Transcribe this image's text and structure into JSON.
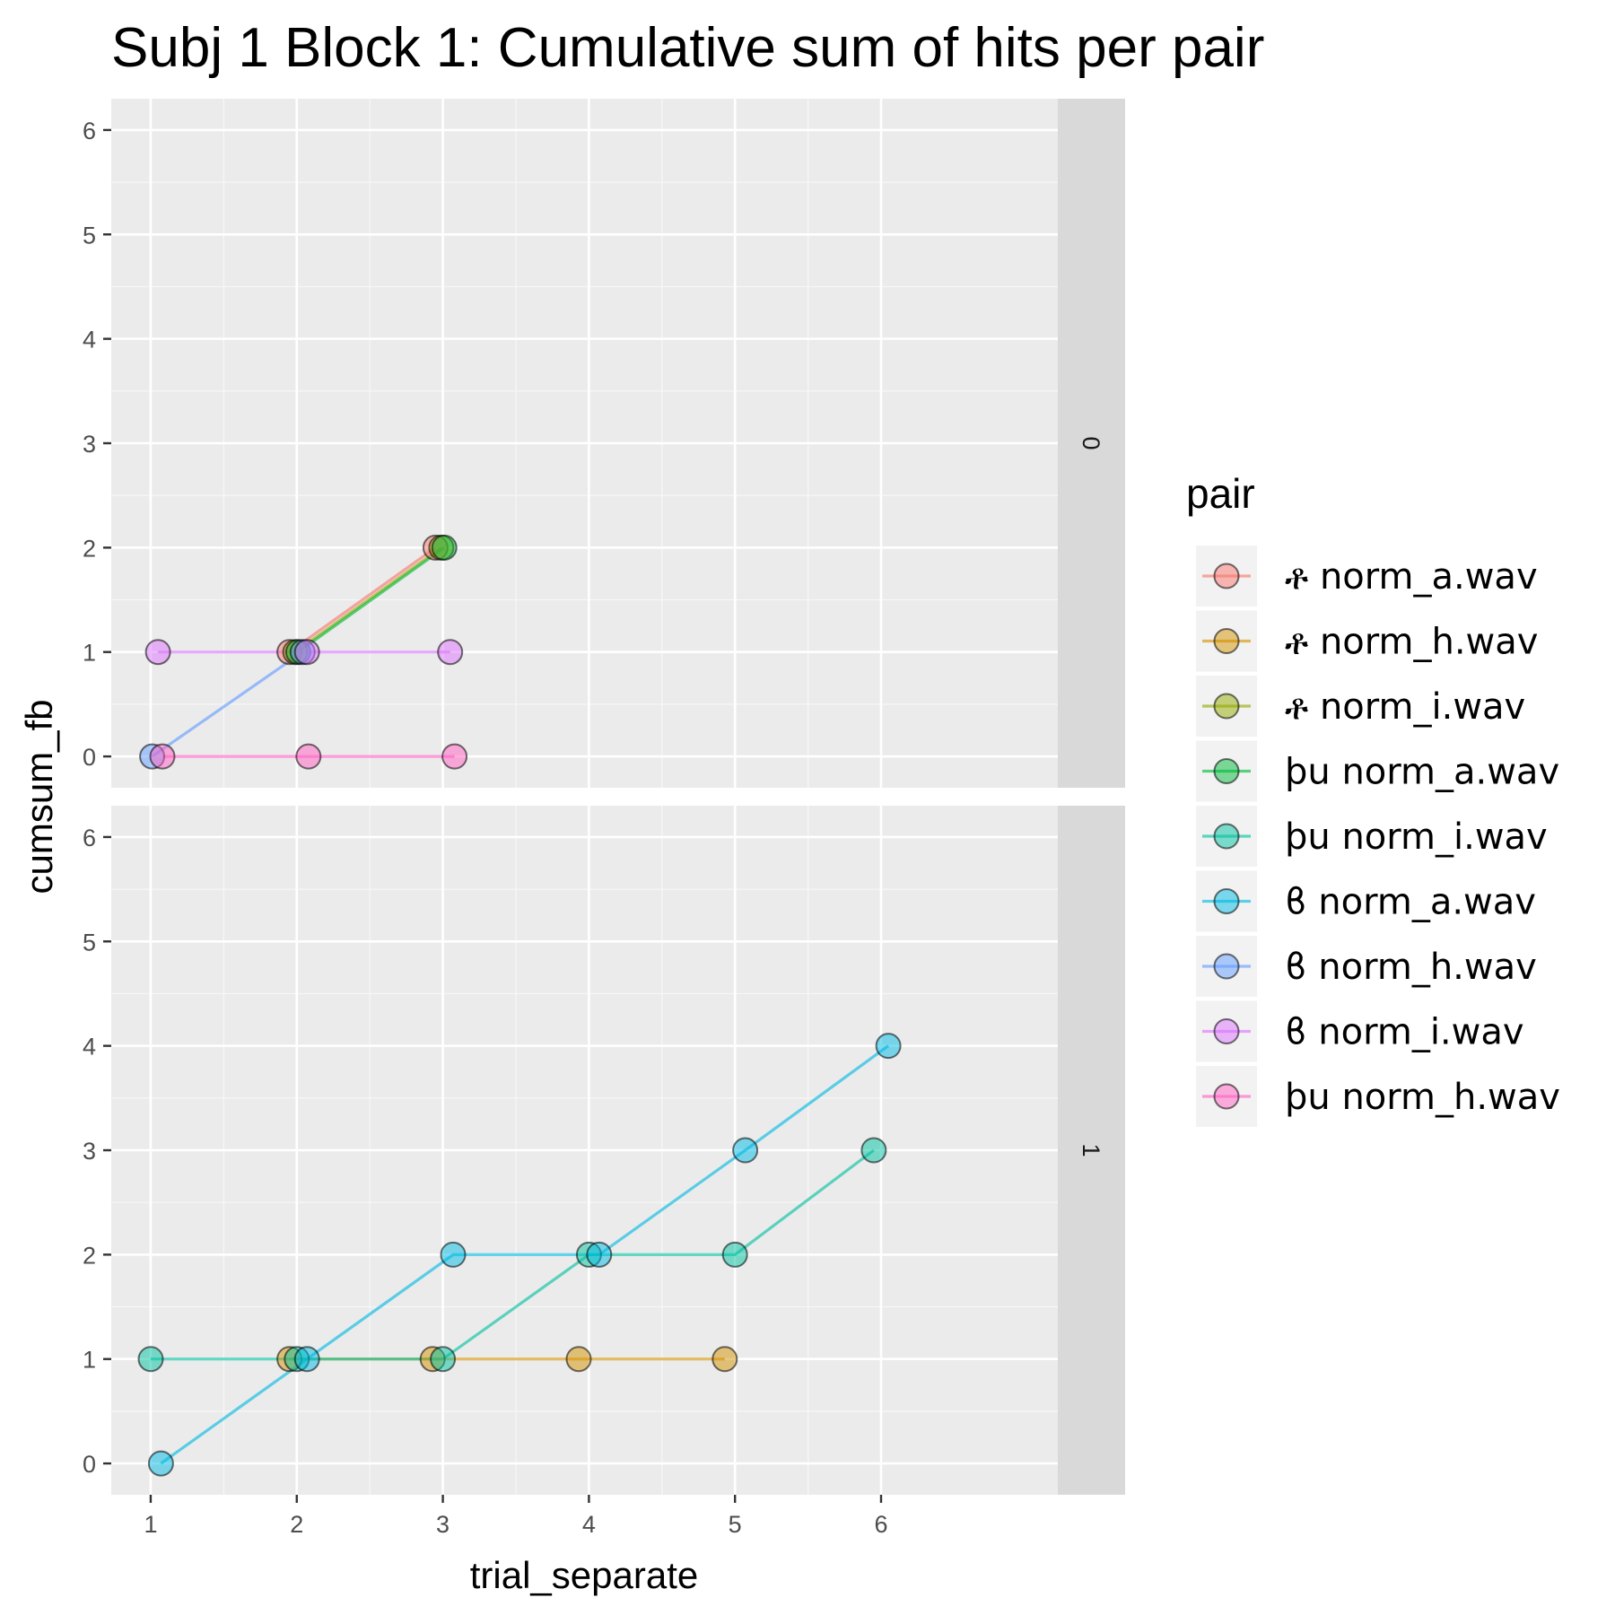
{
  "chart_data": {
    "type": "line",
    "title": "Subj 1 Block 1: Cumulative sum of hits per pair",
    "xlabel": "trial_separate",
    "ylabel": "cumsum_fb",
    "xlim": [
      0.73,
      7.21
    ],
    "ylim": [
      -0.3,
      6.3
    ],
    "x_ticks": [
      "1",
      "2",
      "3",
      "4",
      "5",
      "6"
    ],
    "y_ticks": [
      "0",
      "1",
      "2",
      "3",
      "4",
      "5",
      "6"
    ],
    "grid": true,
    "legend": {
      "title": "pair",
      "placement": "right"
    },
    "facets": [
      "0",
      "1"
    ],
    "series": [
      {
        "name": "ቶ norm_a.wav",
        "color": "#F8766D",
        "points": {
          "0": [
            [
              1.95,
              1
            ],
            [
              2.95,
              2
            ]
          ],
          "1": []
        }
      },
      {
        "name": "ቶ norm_h.wav",
        "color": "#D39200",
        "points": {
          "0": [],
          "1": [
            [
              1.95,
              1
            ],
            [
              2.93,
              1
            ],
            [
              3.93,
              1
            ],
            [
              4.93,
              1
            ]
          ]
        }
      },
      {
        "name": "ቶ norm_i.wav",
        "color": "#93AA00",
        "points": {
          "0": [
            [
              1.99,
              1
            ],
            [
              2.99,
              2
            ]
          ],
          "1": []
        }
      },
      {
        "name": "ϸu norm_a.wav",
        "color": "#00BA38",
        "points": {
          "0": [
            [
              2.01,
              1
            ],
            [
              3.01,
              2
            ]
          ],
          "1": []
        }
      },
      {
        "name": "ϸu norm_i.wav",
        "color": "#00C19F",
        "points": {
          "0": [],
          "1": [
            [
              1.0,
              1
            ],
            [
              2.0,
              1
            ],
            [
              3.0,
              1
            ],
            [
              4.0,
              2
            ],
            [
              5.0,
              2
            ],
            [
              5.95,
              3
            ]
          ]
        }
      },
      {
        "name": "ϐ norm_a.wav",
        "color": "#00B9E3",
        "points": {
          "0": [],
          "1": [
            [
              1.07,
              0
            ],
            [
              2.07,
              1
            ],
            [
              3.07,
              2
            ],
            [
              4.07,
              2
            ],
            [
              5.07,
              3
            ],
            [
              6.05,
              4
            ]
          ]
        }
      },
      {
        "name": "ϐ norm_h.wav",
        "color": "#619CFF",
        "points": {
          "0": [
            [
              1.01,
              0
            ],
            [
              2.04,
              1
            ]
          ],
          "1": []
        }
      },
      {
        "name": "ϐ norm_i.wav",
        "color": "#DB72FB",
        "points": {
          "0": [
            [
              1.05,
              1
            ],
            [
              2.07,
              1
            ],
            [
              3.05,
              1
            ]
          ],
          "1": []
        }
      },
      {
        "name": "ϸu norm_h.wav",
        "color": "#FF61C3",
        "points": {
          "0": [
            [
              1.08,
              0
            ],
            [
              2.08,
              0
            ],
            [
              3.08,
              0
            ]
          ],
          "1": []
        }
      }
    ]
  }
}
